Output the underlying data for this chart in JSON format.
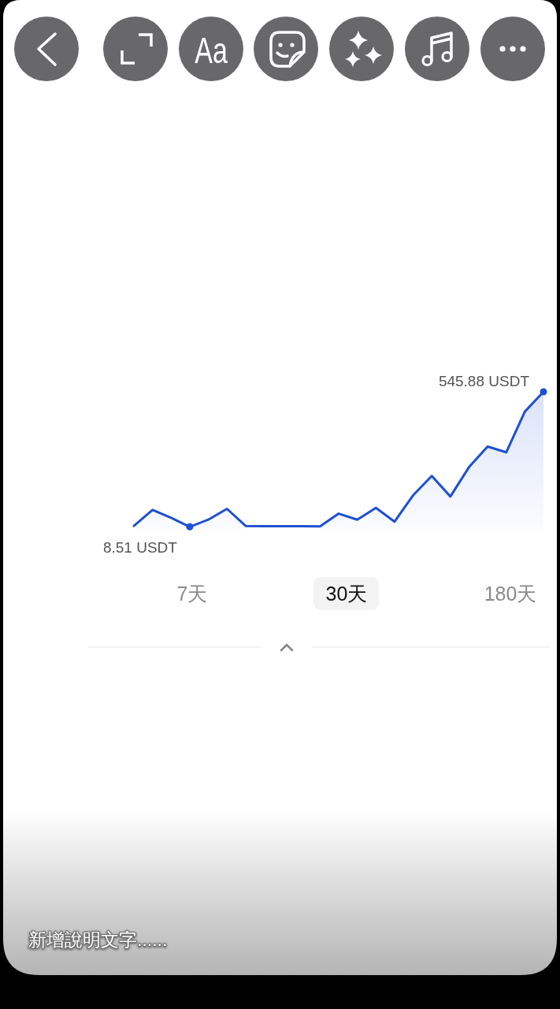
{
  "chart_data": {
    "type": "area",
    "categories": [
      null,
      null,
      null,
      null,
      null,
      null,
      null,
      null,
      null,
      null,
      null,
      null,
      null,
      null,
      null,
      null,
      null,
      null,
      null,
      null,
      null,
      null,
      null
    ],
    "values": [
      12,
      76,
      44,
      8.51,
      37,
      80,
      12,
      11,
      11,
      11,
      10,
      61,
      37,
      84,
      29,
      134,
      211,
      129,
      246,
      328,
      305,
      467,
      545.88
    ],
    "value_labels": [
      null,
      null,
      null,
      "8.51 USDT",
      null,
      null,
      null,
      null,
      null,
      null,
      null,
      null,
      null,
      null,
      null,
      null,
      null,
      null,
      null,
      null,
      null,
      null,
      "545.88 USDT"
    ],
    "color": "#1e50d2",
    "annotations": [
      "Aa",
      "7天",
      "30天",
      "180天",
      "新增說明文字......"
    ]
  }
}
